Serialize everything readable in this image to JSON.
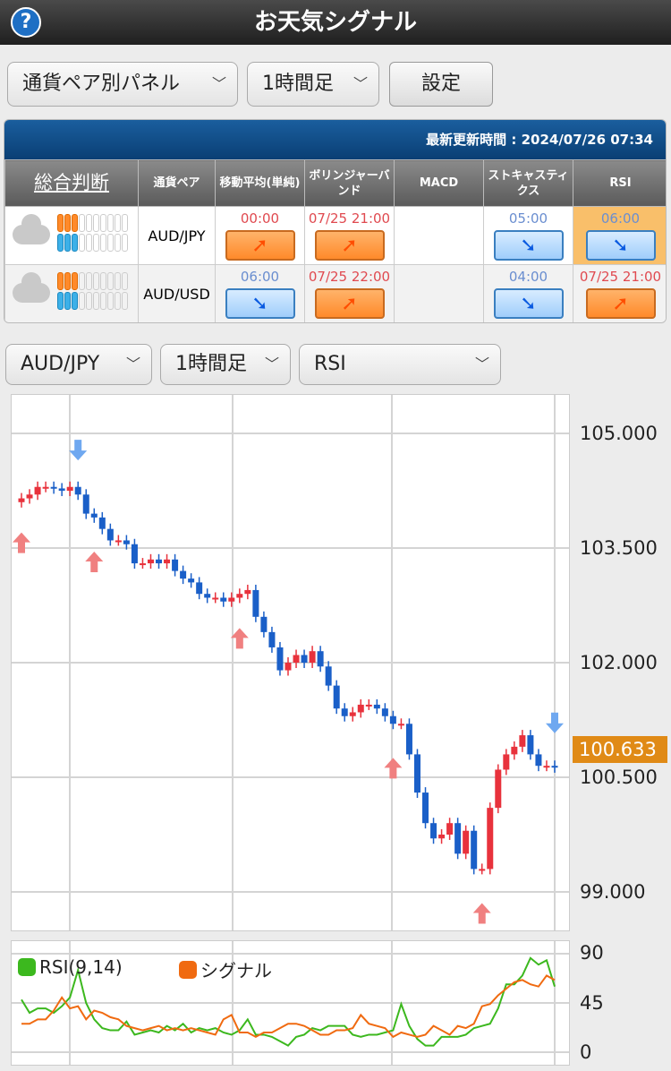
{
  "header": {
    "title": "お天気シグナル",
    "help_icon": "?"
  },
  "controls": {
    "panel_select": "通貨ペア別パネル",
    "timeframe_select": "1時間足",
    "settings_button": "設定"
  },
  "panel": {
    "updated": "最新更新時間 : 2024/07/26 07:34",
    "columns": [
      "総合判断",
      "通貨ペア",
      "移動平均(単純)",
      "ボリンジャーバンド",
      "MACD",
      "ストキャスティクス",
      "RSI"
    ],
    "rows": [
      {
        "pair": "AUD/JPY",
        "weather": "cloudy",
        "sell_level": 3,
        "buy_level": 3,
        "cells": [
          {
            "time": "00:00",
            "dir": "up"
          },
          {
            "time": "07/25 21:00",
            "dir": "up"
          },
          {
            "time": "",
            "dir": ""
          },
          {
            "time": "05:00",
            "dir": "down"
          },
          {
            "time": "06:00",
            "dir": "down",
            "highlight": true
          }
        ]
      },
      {
        "pair": "AUD/USD",
        "weather": "cloudy",
        "sell_level": 3,
        "buy_level": 3,
        "cells": [
          {
            "time": "06:00",
            "dir": "down"
          },
          {
            "time": "07/25 22:00",
            "dir": "up"
          },
          {
            "time": "",
            "dir": ""
          },
          {
            "time": "04:00",
            "dir": "down"
          },
          {
            "time": "07/25 21:00",
            "dir": "up"
          }
        ]
      }
    ]
  },
  "chart_controls": {
    "pair_select": "AUD/JPY",
    "timeframe_select": "1時間足",
    "indicator_select": "RSI"
  },
  "colors": {
    "up": "#e8323c",
    "down": "#1a5fc8",
    "buy_arrow": "#f08080",
    "sell_arrow": "#6fa8f0",
    "rsi": "#3cb81e",
    "signal": "#f06a10",
    "price_tag": "#e08a16"
  },
  "chart_data": [
    {
      "type": "candlestick",
      "yticks": [
        "105.000",
        "103.500",
        "102.000",
        "100.500",
        "99.000"
      ],
      "ylim": [
        98.5,
        105.6
      ],
      "current_price": "100.633",
      "closes": [
        104.15,
        104.2,
        104.3,
        104.3,
        104.28,
        104.25,
        104.3,
        104.2,
        103.95,
        103.9,
        103.75,
        103.6,
        103.6,
        103.55,
        103.3,
        103.3,
        103.35,
        103.3,
        103.35,
        103.2,
        103.1,
        103.05,
        102.9,
        102.85,
        102.85,
        102.8,
        102.85,
        102.9,
        102.95,
        102.6,
        102.4,
        102.2,
        101.9,
        102.0,
        102.1,
        102.0,
        102.15,
        101.95,
        101.7,
        101.4,
        101.3,
        101.35,
        101.45,
        101.45,
        101.4,
        101.3,
        101.2,
        101.2,
        100.8,
        100.3,
        99.9,
        99.7,
        99.75,
        99.9,
        99.5,
        99.8,
        99.3,
        99.3,
        100.1,
        100.6,
        100.8,
        100.9,
        101.05,
        100.8,
        100.65,
        100.65,
        100.63
      ],
      "buy_signals": [
        0,
        9,
        27,
        46,
        57
      ],
      "sell_signals": [
        7,
        66
      ]
    },
    {
      "type": "line",
      "yticks": [
        "90",
        "45",
        "0"
      ],
      "ylim": [
        0,
        90
      ],
      "series": [
        {
          "name": "RSI(9,14)",
          "values": [
            48,
            36,
            40,
            40,
            36,
            42,
            50,
            75,
            45,
            30,
            22,
            20,
            20,
            28,
            16,
            18,
            20,
            18,
            24,
            20,
            26,
            18,
            22,
            20,
            22,
            18,
            16,
            20,
            30,
            16,
            16,
            14,
            10,
            6,
            14,
            16,
            22,
            20,
            24,
            24,
            24,
            16,
            14,
            16,
            16,
            18,
            20,
            44,
            24,
            12,
            6,
            6,
            14,
            14,
            14,
            16,
            22,
            24,
            26,
            40,
            62,
            62,
            70,
            86,
            80,
            84,
            60
          ]
        },
        {
          "name": "シグナル",
          "values": [
            26,
            26,
            30,
            30,
            38,
            50,
            40,
            42,
            30,
            38,
            36,
            32,
            30,
            24,
            22,
            20,
            22,
            24,
            20,
            22,
            20,
            22,
            20,
            18,
            16,
            30,
            34,
            18,
            18,
            14,
            18,
            18,
            22,
            26,
            26,
            24,
            20,
            16,
            16,
            20,
            20,
            22,
            34,
            26,
            24,
            22,
            14,
            18,
            16,
            14,
            16,
            24,
            20,
            16,
            24,
            22,
            26,
            42,
            44,
            52,
            58,
            64,
            66,
            62,
            60,
            70,
            66
          ]
        }
      ]
    }
  ]
}
